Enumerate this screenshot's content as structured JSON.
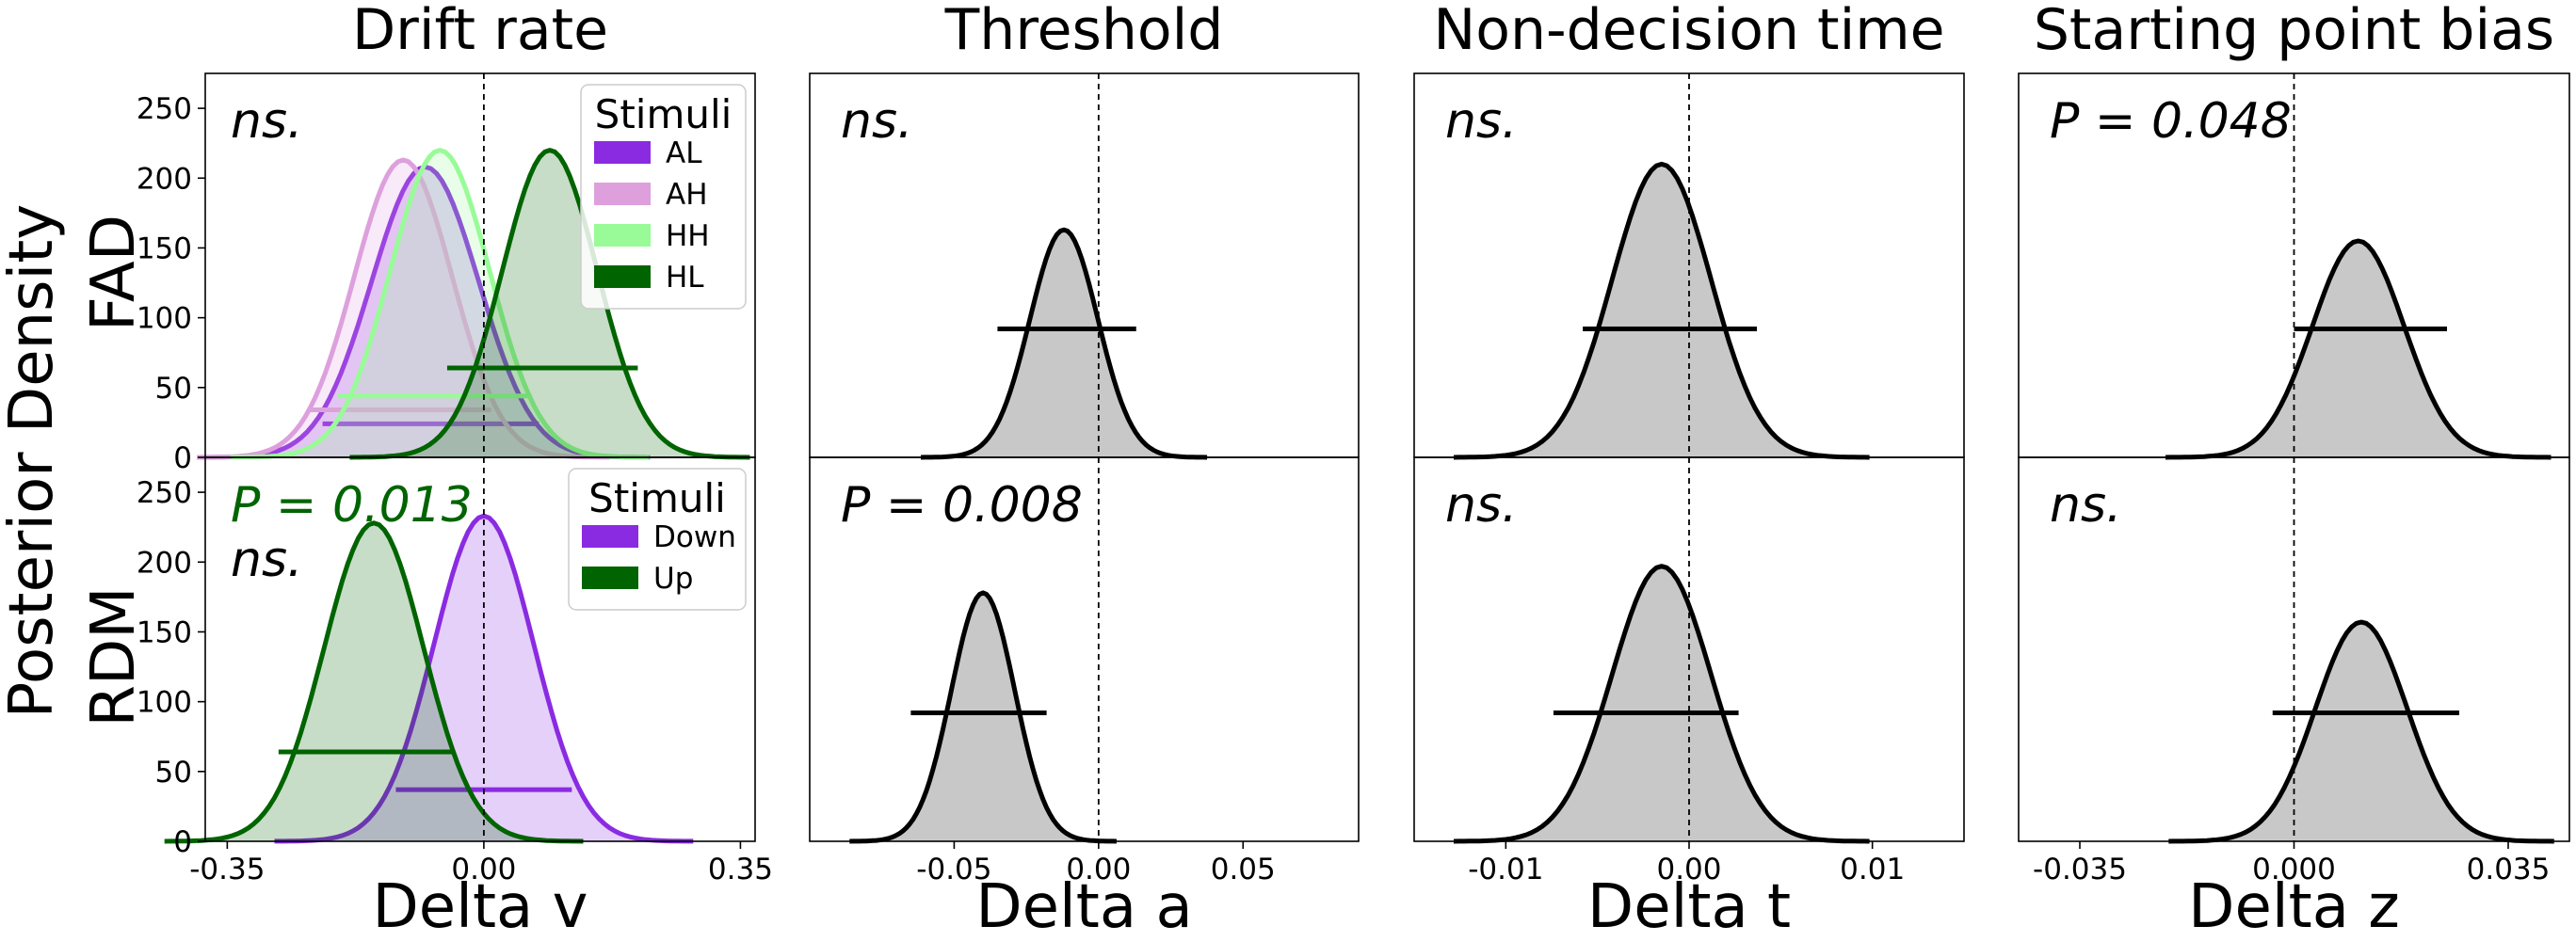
{
  "figure": {
    "ylabel": "Posterior Density",
    "row_labels": [
      "FAD",
      "RDM"
    ]
  },
  "chart_data": [
    {
      "type": "area",
      "column": 0,
      "row": 0,
      "title": "Drift rate",
      "xlabel": "Delta v",
      "ylabel": "FAD",
      "xlim": [
        -0.38,
        0.37
      ],
      "ylim": [
        0,
        275
      ],
      "xticks": [
        -0.35,
        0.0,
        0.35
      ],
      "xticklabels": [
        "-0.35",
        "0.00",
        "0.35"
      ],
      "yticks": [
        0,
        50,
        100,
        150,
        200,
        250
      ],
      "yticklabels": [
        "0",
        "50",
        "100",
        "150",
        "200",
        "250"
      ],
      "zero_line": 0.0,
      "annotations": [
        {
          "text": "ns.",
          "color": "#000000"
        }
      ],
      "legend": {
        "title": "Stimuli",
        "placement": "top-right"
      },
      "series": [
        {
          "name": "AL",
          "color": "#8a2be2",
          "mean": -0.08,
          "sd": 0.073,
          "peak": 208,
          "hdi": [
            -0.22,
            0.075
          ],
          "hdi_y": 24
        },
        {
          "name": "AH",
          "color": "#dda0dd",
          "mean": -0.11,
          "sd": 0.067,
          "peak": 213,
          "hdi": [
            -0.24,
            0.01
          ],
          "hdi_y": 34
        },
        {
          "name": "HH",
          "color": "#98fb98",
          "mean": -0.06,
          "sd": 0.068,
          "peak": 220,
          "hdi": [
            -0.2,
            0.065
          ],
          "hdi_y": 44
        },
        {
          "name": "HL",
          "color": "#006400",
          "mean": 0.09,
          "sd": 0.065,
          "peak": 220,
          "hdi": [
            -0.05,
            0.21
          ],
          "hdi_y": 64
        }
      ]
    },
    {
      "type": "area",
      "column": 0,
      "row": 1,
      "title": "",
      "xlabel": "Delta v",
      "ylabel": "RDM",
      "xlim": [
        -0.38,
        0.37
      ],
      "ylim": [
        0,
        275
      ],
      "xticks": [
        -0.35,
        0.0,
        0.35
      ],
      "xticklabels": [
        "-0.35",
        "0.00",
        "0.35"
      ],
      "yticks": [
        0,
        50,
        100,
        150,
        200,
        250
      ],
      "yticklabels": [
        "0",
        "50",
        "100",
        "150",
        "200",
        "250"
      ],
      "zero_line": 0.0,
      "annotations": [
        {
          "text": "P = 0.013",
          "color": "#006400"
        },
        {
          "text": "ns.",
          "color": "#000000"
        }
      ],
      "legend": {
        "title": "Stimuli",
        "placement": "top-right"
      },
      "series": [
        {
          "name": "Down",
          "color": "#8a2be2",
          "mean": 0.0,
          "sd": 0.068,
          "peak": 233,
          "hdi": [
            -0.12,
            0.12
          ],
          "hdi_y": 37
        },
        {
          "name": "Up",
          "color": "#006400",
          "mean": -0.15,
          "sd": 0.068,
          "peak": 228,
          "hdi": [
            -0.28,
            -0.04
          ],
          "hdi_y": 64
        }
      ]
    },
    {
      "type": "area",
      "column": 1,
      "row": 0,
      "title": "Threshold",
      "xlabel": "Delta a",
      "xlim": [
        -0.1,
        0.09
      ],
      "ylim": [
        0,
        275
      ],
      "xticks": [
        -0.05,
        0.0,
        0.05
      ],
      "xticklabels": [
        "-0.05",
        "0.00",
        "0.05"
      ],
      "zero_line": 0.0,
      "annotations": [
        {
          "text": "ns.",
          "color": "#000000"
        }
      ],
      "series": [
        {
          "color": "#000000",
          "mean": -0.012,
          "sd": 0.0118,
          "peak": 163,
          "hdi": [
            -0.035,
            0.013
          ],
          "hdi_y": 92
        }
      ]
    },
    {
      "type": "area",
      "column": 1,
      "row": 1,
      "title": "",
      "xlabel": "Delta a",
      "xlim": [
        -0.1,
        0.09
      ],
      "ylim": [
        0,
        275
      ],
      "xticks": [
        -0.05,
        0.0,
        0.05
      ],
      "xticklabels": [
        "-0.05",
        "0.00",
        "0.05"
      ],
      "zero_line": 0.0,
      "annotations": [
        {
          "text": "P = 0.008",
          "color": "#000000"
        }
      ],
      "series": [
        {
          "color": "#000000",
          "mean": -0.04,
          "sd": 0.011,
          "peak": 178,
          "hdi": [
            -0.065,
            -0.018
          ],
          "hdi_y": 92
        }
      ]
    },
    {
      "type": "area",
      "column": 2,
      "row": 0,
      "title": "Non-decision time",
      "xlabel": "Delta t",
      "xlim": [
        -0.015,
        0.015
      ],
      "ylim": [
        0,
        275
      ],
      "xticks": [
        -0.01,
        0.0,
        0.01
      ],
      "xticklabels": [
        "-0.01",
        "0.00",
        "0.01"
      ],
      "zero_line": 0.0,
      "annotations": [
        {
          "text": "ns.",
          "color": "#000000"
        }
      ],
      "series": [
        {
          "color": "#000000",
          "mean": -0.0015,
          "sd": 0.0027,
          "peak": 210,
          "hdi": [
            -0.0058,
            0.0037
          ],
          "hdi_y": 92
        }
      ]
    },
    {
      "type": "area",
      "column": 2,
      "row": 1,
      "title": "",
      "xlabel": "Delta t",
      "xlim": [
        -0.015,
        0.015
      ],
      "ylim": [
        0,
        275
      ],
      "xticks": [
        -0.01,
        0.0,
        0.01
      ],
      "xticklabels": [
        "-0.01",
        "0.00",
        "0.01"
      ],
      "zero_line": 0.0,
      "annotations": [
        {
          "text": "ns.",
          "color": "#000000"
        }
      ],
      "series": [
        {
          "color": "#000000",
          "mean": -0.0015,
          "sd": 0.0027,
          "peak": 197,
          "hdi": [
            -0.0074,
            0.0027
          ],
          "hdi_y": 92
        }
      ]
    },
    {
      "type": "area",
      "column": 3,
      "row": 0,
      "title": "Starting point bias",
      "xlabel": "Delta z",
      "xlim": [
        -0.045,
        0.045
      ],
      "ylim": [
        0,
        275
      ],
      "xticks": [
        -0.035,
        0.0,
        0.035
      ],
      "xticklabels": [
        "-0.035",
        "0.000",
        "0.035"
      ],
      "zero_line": 0.0,
      "annotations": [
        {
          "text": "P = 0.048",
          "color": "#000000"
        }
      ],
      "series": [
        {
          "color": "#000000",
          "mean": 0.0105,
          "sd": 0.0075,
          "peak": 155,
          "hdi": [
            0.0,
            0.025
          ],
          "hdi_y": 92
        }
      ]
    },
    {
      "type": "area",
      "column": 3,
      "row": 1,
      "title": "",
      "xlabel": "Delta z",
      "xlim": [
        -0.045,
        0.045
      ],
      "ylim": [
        0,
        275
      ],
      "xticks": [
        -0.035,
        0.0,
        0.035
      ],
      "xticklabels": [
        "-0.035",
        "0.000",
        "0.035"
      ],
      "zero_line": 0.0,
      "annotations": [
        {
          "text": "ns.",
          "color": "#000000"
        }
      ],
      "series": [
        {
          "color": "#000000",
          "mean": 0.011,
          "sd": 0.0075,
          "peak": 157,
          "hdi": [
            -0.0035,
            0.027
          ],
          "hdi_y": 92
        }
      ]
    }
  ]
}
